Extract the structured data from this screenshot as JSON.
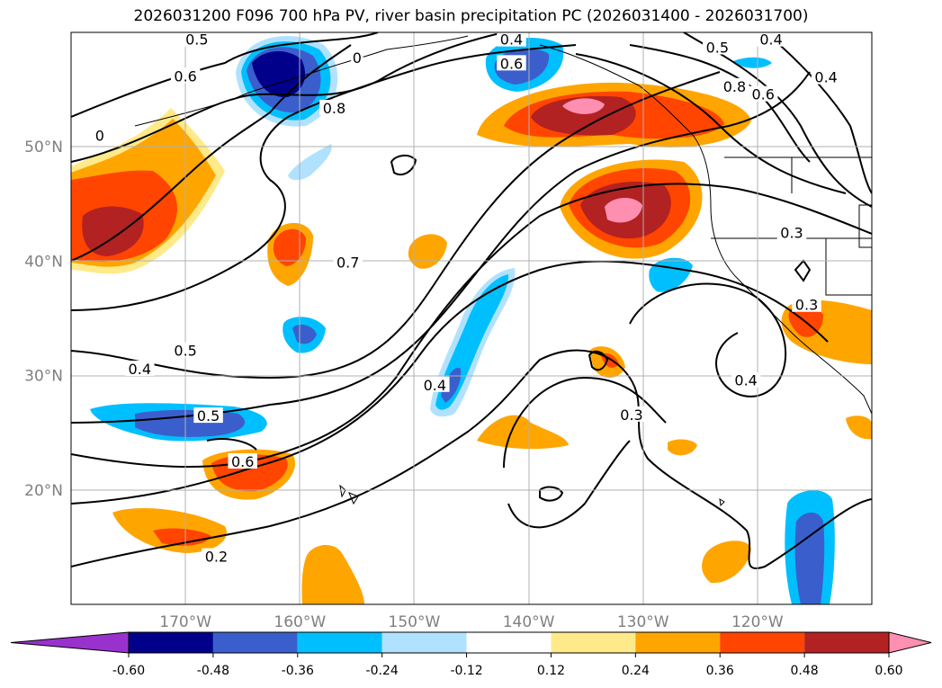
{
  "title": "2026031200 F096 700 hPa PV, river basin precipitation PC (2026031400 - 2026031700)",
  "map": {
    "lon_range": [
      -180,
      -110
    ],
    "lat_range": [
      10,
      60
    ],
    "lon_ticks": [
      {
        "value": -170,
        "label": "170°W"
      },
      {
        "value": -160,
        "label": "160°W"
      },
      {
        "value": -150,
        "label": "150°W"
      },
      {
        "value": -140,
        "label": "140°W"
      },
      {
        "value": -130,
        "label": "130°W"
      },
      {
        "value": -120,
        "label": "120°W"
      }
    ],
    "lat_ticks": [
      {
        "value": 20,
        "label": "20°N"
      },
      {
        "value": 30,
        "label": "30°N"
      },
      {
        "value": 40,
        "label": "40°N"
      },
      {
        "value": 50,
        "label": "50°N"
      }
    ],
    "gridlines": true
  },
  "contour_labels": [
    {
      "text": "0.5",
      "lon": -169,
      "lat": 59.4
    },
    {
      "text": "0.6",
      "lon": -170,
      "lat": 56.2
    },
    {
      "text": "0",
      "lon": -155,
      "lat": 57.8
    },
    {
      "text": "0.8",
      "lon": -157,
      "lat": 53.4
    },
    {
      "text": "0.4",
      "lon": -141.5,
      "lat": 59.4
    },
    {
      "text": "0.6",
      "lon": -141.5,
      "lat": 57.3
    },
    {
      "text": "0.5",
      "lon": -123.5,
      "lat": 58.7
    },
    {
      "text": "0.4",
      "lon": -118.8,
      "lat": 59.4
    },
    {
      "text": "0.8",
      "lon": -122,
      "lat": 55.3
    },
    {
      "text": "0.6",
      "lon": -119.5,
      "lat": 54.6
    },
    {
      "text": "0.4",
      "lon": -114,
      "lat": 56.1
    },
    {
      "text": "0",
      "lon": -177.5,
      "lat": 51.0
    },
    {
      "text": "0.7",
      "lon": -155.8,
      "lat": 39.9
    },
    {
      "text": "0.3",
      "lon": -117,
      "lat": 42.5
    },
    {
      "text": "0.3",
      "lon": -115.7,
      "lat": 36.2
    },
    {
      "text": "0.5",
      "lon": -170,
      "lat": 32.2
    },
    {
      "text": "0.4",
      "lon": -174,
      "lat": 30.6
    },
    {
      "text": "0.4",
      "lon": -148.2,
      "lat": 29.2
    },
    {
      "text": "0.4",
      "lon": -121,
      "lat": 29.6
    },
    {
      "text": "0.3",
      "lon": -131,
      "lat": 26.6
    },
    {
      "text": "0.5",
      "lon": -168,
      "lat": 26.5
    },
    {
      "text": "0.6",
      "lon": -165,
      "lat": 22.5
    },
    {
      "text": "0.2",
      "lon": -167.3,
      "lat": 14.2
    }
  ],
  "colorbar": {
    "ticks": [
      "-0.60",
      "-0.48",
      "-0.36",
      "-0.24",
      "-0.12",
      "0.12",
      "0.24",
      "0.36",
      "0.48",
      "0.60"
    ],
    "colors": [
      "#9932cc",
      "#00008b",
      "#3a5fcd",
      "#00bfff",
      "#b0e2ff",
      "#ffffff",
      "#ffea8a",
      "#ffa500",
      "#ff4500",
      "#b22222",
      "#ff8fb1"
    ]
  }
}
